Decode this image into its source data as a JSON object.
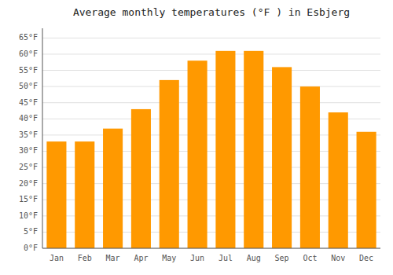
{
  "chart_data": {
    "type": "bar",
    "title": "Average monthly temperatures (°F ) in Esbjerg",
    "categories": [
      "Jan",
      "Feb",
      "Mar",
      "Apr",
      "May",
      "Jun",
      "Jul",
      "Aug",
      "Sep",
      "Oct",
      "Nov",
      "Dec"
    ],
    "values": [
      33,
      33,
      37,
      43,
      52,
      58,
      61,
      61,
      56,
      50,
      42,
      36
    ],
    "color": "#FF9900",
    "ylim": [
      0,
      68
    ],
    "yticks": [
      {
        "value": 0,
        "label": "0°F"
      },
      {
        "value": 5,
        "label": "5°F"
      },
      {
        "value": 10,
        "label": "10°F"
      },
      {
        "value": 15,
        "label": "15°F"
      },
      {
        "value": 20,
        "label": "20°F"
      },
      {
        "value": 25,
        "label": "25°F"
      },
      {
        "value": 30,
        "label": "30°F"
      },
      {
        "value": 35,
        "label": "35°F"
      },
      {
        "value": 40,
        "label": "40°F"
      },
      {
        "value": 45,
        "label": "45°F"
      },
      {
        "value": 50,
        "label": "50°F"
      },
      {
        "value": 55,
        "label": "55°F"
      },
      {
        "value": 60,
        "label": "60°F"
      },
      {
        "value": 65,
        "label": "65°F"
      }
    ],
    "grid": true
  }
}
